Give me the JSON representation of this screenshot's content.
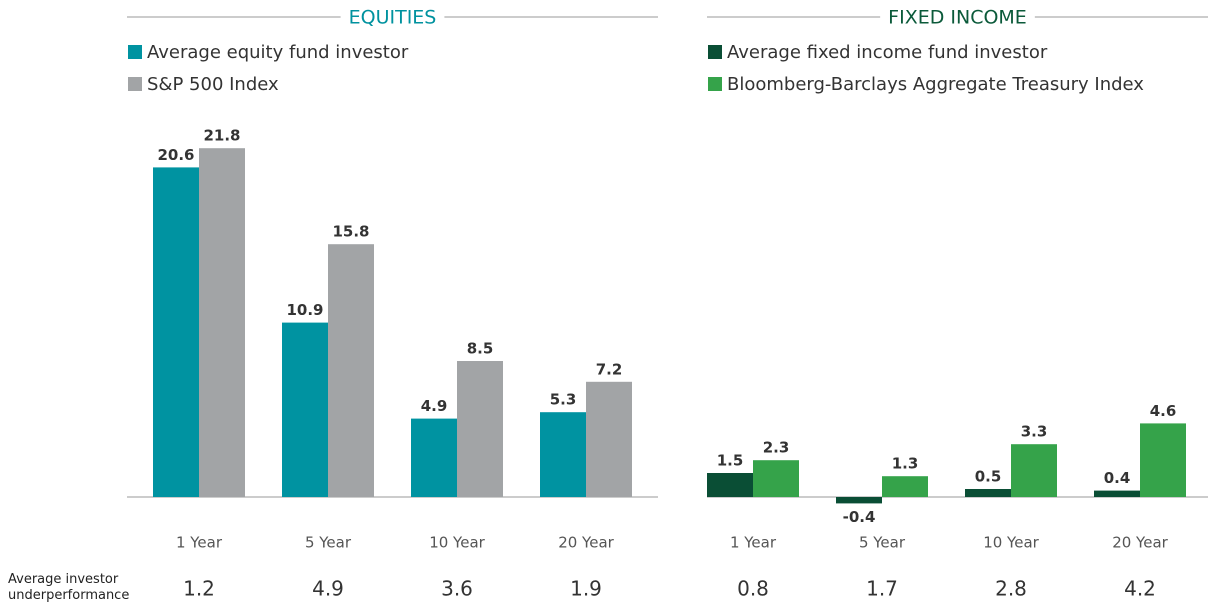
{
  "chart_data": [
    {
      "type": "bar",
      "title": "EQUITIES",
      "title_color": "#00929f",
      "categories": [
        "1 Year",
        "5 Year",
        "10 Year",
        "20 Year"
      ],
      "series": [
        {
          "name": "Average equity fund investor",
          "color": "#0093a1",
          "values": [
            20.6,
            10.9,
            4.9,
            5.3
          ]
        },
        {
          "name": "S&P 500 Index",
          "color": "#a2a4a6",
          "values": [
            21.8,
            15.8,
            8.5,
            7.2
          ]
        }
      ],
      "underperformance": [
        1.2,
        4.9,
        3.6,
        1.9
      ]
    },
    {
      "type": "bar",
      "title": "FIXED INCOME",
      "title_color": "#0b5a3a",
      "categories": [
        "1 Year",
        "5 Year",
        "10 Year",
        "20 Year"
      ],
      "series": [
        {
          "name": "Average fixed income fund investor",
          "color": "#0a4e35",
          "values": [
            1.5,
            -0.4,
            0.5,
            0.4
          ]
        },
        {
          "name": "Bloomberg-Barclays Aggregate Treasury Index",
          "color": "#35a34a",
          "values": [
            2.3,
            1.3,
            3.3,
            4.6
          ]
        }
      ],
      "underperformance": [
        0.8,
        1.7,
        2.8,
        4.2
      ]
    }
  ],
  "underperformance_label": "Average investor underperformance"
}
